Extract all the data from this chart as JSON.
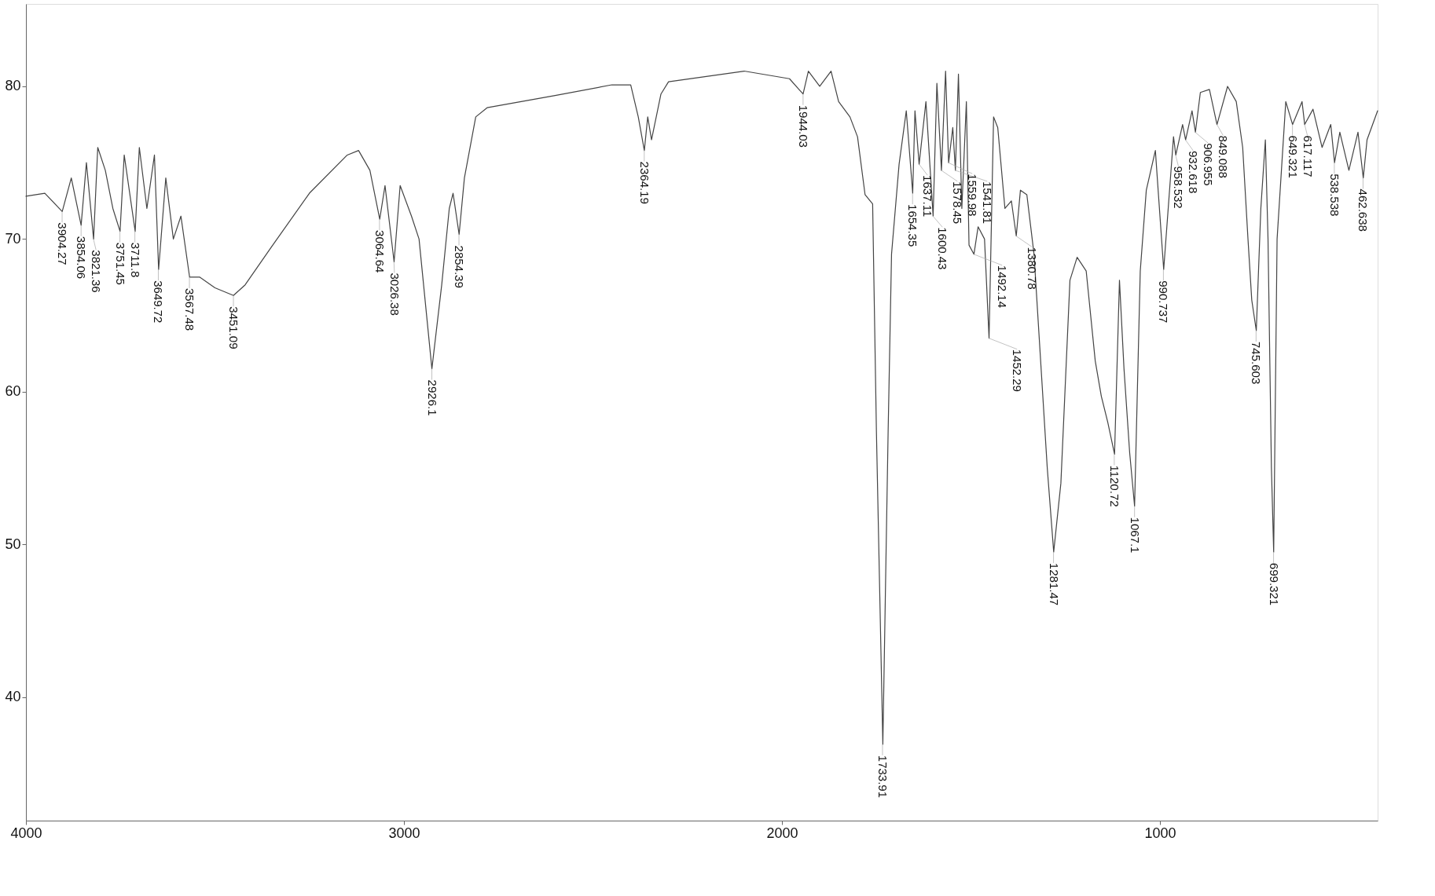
{
  "chart_data": {
    "type": "line",
    "x": [
      4000,
      3950,
      3904,
      3880,
      3854,
      3840,
      3821,
      3810,
      3790,
      3770,
      3751,
      3740,
      3711,
      3700,
      3680,
      3660,
      3649,
      3630,
      3610,
      3590,
      3567,
      3540,
      3500,
      3451,
      3420,
      3350,
      3250,
      3150,
      3120,
      3090,
      3064,
      3050,
      3026,
      3010,
      2980,
      2960,
      2926,
      2900,
      2880,
      2870,
      2854,
      2840,
      2810,
      2780,
      2600,
      2450,
      2400,
      2380,
      2364,
      2355,
      2345,
      2320,
      2300,
      2100,
      1980,
      1944,
      1930,
      1900,
      1870,
      1850,
      1820,
      1800,
      1780,
      1760,
      1750,
      1733,
      1719,
      1710,
      1690,
      1671,
      1654,
      1648,
      1637,
      1619,
      1600,
      1590,
      1578,
      1567,
      1559,
      1548,
      1541,
      1533,
      1524,
      1512,
      1505,
      1492,
      1481,
      1464,
      1452,
      1440,
      1429,
      1410,
      1393,
      1380,
      1369,
      1352,
      1333,
      1298,
      1281,
      1262,
      1238,
      1219,
      1195,
      1171,
      1155,
      1138,
      1120,
      1107,
      1095,
      1080,
      1067,
      1052,
      1036,
      1012,
      990,
      964,
      958,
      940,
      932,
      915,
      906,
      893,
      869,
      849,
      821,
      798,
      781,
      767,
      757,
      745,
      733,
      721,
      714,
      705,
      699,
      690,
      667,
      649,
      624,
      617,
      595,
      571,
      548,
      538,
      524,
      500,
      476,
      462,
      452,
      424
    ],
    "series": [
      {
        "color": "#444444",
        "values": [
          72.8,
          73,
          71.8,
          74,
          70.9,
          75,
          70.0,
          76,
          74.5,
          72,
          70.5,
          75.5,
          70.5,
          76,
          72,
          75.5,
          68,
          74,
          70,
          71.5,
          67.5,
          67.5,
          66.8,
          66.3,
          67,
          69.5,
          73,
          75.5,
          75.8,
          74.5,
          71.3,
          73.5,
          68.5,
          73.5,
          71.5,
          70,
          61.5,
          67,
          72,
          73,
          70.3,
          74,
          78,
          78.6,
          79.4,
          80.1,
          80.1,
          78,
          75.8,
          78,
          76.5,
          79.5,
          80.3,
          81,
          80.5,
          79.5,
          81,
          80,
          81,
          79,
          78,
          76.7,
          72.9,
          72.3,
          57.4,
          36.9,
          57.4,
          69,
          74.9,
          78.4,
          73,
          78.4,
          74.9,
          79,
          71.5,
          80.2,
          74.5,
          81,
          75,
          77.3,
          74.5,
          80.8,
          72,
          79,
          69.6,
          69,
          70.8,
          70,
          63.5,
          78,
          77.3,
          72,
          72.5,
          70.2,
          73.2,
          72.9,
          69,
          55,
          49.5,
          54,
          67.3,
          68.8,
          67.9,
          62,
          59.7,
          58,
          55.9,
          67.3,
          61.5,
          56,
          52.5,
          67.9,
          73.2,
          75.8,
          68,
          76.7,
          75.5,
          77.5,
          76.5,
          78.4,
          77,
          79.6,
          79.8,
          77.5,
          80,
          79,
          76,
          70,
          66,
          64,
          72,
          76.5,
          70,
          55,
          49.5,
          70,
          79,
          77.5,
          79,
          77.5,
          78.5,
          76,
          77.5,
          75,
          77,
          74.5,
          77,
          74,
          76.5,
          78.4
        ]
      }
    ],
    "xlim": [
      4000,
      424
    ],
    "ylim": [
      31.9,
      85.4
    ],
    "xticks": [
      4000,
      3000,
      2000,
      1000
    ],
    "yticks": [
      40,
      50,
      60,
      70,
      80
    ],
    "grid": false,
    "marker": "none",
    "line_style": "solid",
    "annotations": [
      {
        "text": "3904.27",
        "x": 3904.27,
        "y": 71.8
      },
      {
        "text": "3854.06",
        "x": 3854.06,
        "y": 70.9
      },
      {
        "text": "3821.36",
        "x": 3821.36,
        "y": 70.0
      },
      {
        "text": "3751.45",
        "x": 3751.45,
        "y": 70.5
      },
      {
        "text": "3711.8",
        "x": 3711.8,
        "y": 70.5
      },
      {
        "text": "3649.72",
        "x": 3649.72,
        "y": 68
      },
      {
        "text": "3567.48",
        "x": 3567.48,
        "y": 67.5
      },
      {
        "text": "3451.09",
        "x": 3451.09,
        "y": 66.3
      },
      {
        "text": "3064.64",
        "x": 3064.64,
        "y": 71.3
      },
      {
        "text": "3026.38",
        "x": 3026.38,
        "y": 68.5
      },
      {
        "text": "2926.1",
        "x": 2926.1,
        "y": 61.5
      },
      {
        "text": "2854.39",
        "x": 2854.39,
        "y": 70.3
      },
      {
        "text": "2364.19",
        "x": 2364.19,
        "y": 75.8
      },
      {
        "text": "1944.03",
        "x": 1944.03,
        "y": 79.5
      },
      {
        "text": "1733.91",
        "x": 1733.91,
        "y": 36.9
      },
      {
        "text": "1654.35",
        "x": 1654.35,
        "y": 73
      },
      {
        "text": "1637.11",
        "x": 1637.11,
        "y": 74.9
      },
      {
        "text": "1600.43",
        "x": 1600.43,
        "y": 71.5
      },
      {
        "text": "1578.45",
        "x": 1578.45,
        "y": 74.5
      },
      {
        "text": "1559.98",
        "x": 1559.98,
        "y": 75
      },
      {
        "text": "1541.81",
        "x": 1541.81,
        "y": 74.5
      },
      {
        "text": "1492.14",
        "x": 1492.14,
        "y": 69
      },
      {
        "text": "1452.29",
        "x": 1452.29,
        "y": 63.5
      },
      {
        "text": "1380.78",
        "x": 1380.78,
        "y": 70.2
      },
      {
        "text": "1281.47",
        "x": 1281.47,
        "y": 49.5
      },
      {
        "text": "1120.72",
        "x": 1120.72,
        "y": 55.9
      },
      {
        "text": "1067.1",
        "x": 1067.1,
        "y": 52.5
      },
      {
        "text": "990.737",
        "x": 990.737,
        "y": 68
      },
      {
        "text": "958.532",
        "x": 958.532,
        "y": 75.5
      },
      {
        "text": "932.618",
        "x": 932.618,
        "y": 76.5
      },
      {
        "text": "906.955",
        "x": 906.955,
        "y": 77
      },
      {
        "text": "849.088",
        "x": 849.088,
        "y": 77.5
      },
      {
        "text": "745.603",
        "x": 745.603,
        "y": 64
      },
      {
        "text": "699.321",
        "x": 699.321,
        "y": 49.5
      },
      {
        "text": "649.321",
        "x": 649.321,
        "y": 77.5
      },
      {
        "text": "617.117",
        "x": 617.117,
        "y": 77.5
      },
      {
        "text": "538.538",
        "x": 538.538,
        "y": 75
      },
      {
        "text": "462.638",
        "x": 462.638,
        "y": 74
      }
    ]
  }
}
